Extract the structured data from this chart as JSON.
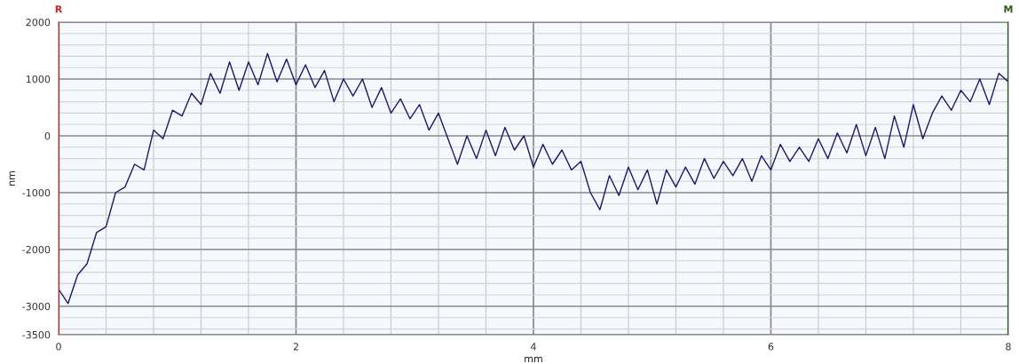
{
  "chart_data": {
    "type": "line",
    "xlabel": "mm",
    "ylabel": "nm",
    "x": [
      0,
      0.08,
      0.16,
      0.24,
      0.32,
      0.4,
      0.48,
      0.56,
      0.64,
      0.72,
      0.8,
      0.88,
      0.96,
      1.04,
      1.12,
      1.2,
      1.28,
      1.36,
      1.44,
      1.52,
      1.6,
      1.68,
      1.76,
      1.84,
      1.92,
      2.0,
      2.08,
      2.16,
      2.24,
      2.32,
      2.4,
      2.48,
      2.56,
      2.64,
      2.72,
      2.8,
      2.88,
      2.96,
      3.04,
      3.12,
      3.2,
      3.28,
      3.36,
      3.44,
      3.52,
      3.6,
      3.68,
      3.76,
      3.84,
      3.92,
      4.0,
      4.08,
      4.16,
      4.24,
      4.32,
      4.4,
      4.48,
      4.56,
      4.64,
      4.72,
      4.8,
      4.88,
      4.96,
      5.04,
      5.12,
      5.2,
      5.28,
      5.36,
      5.44,
      5.52,
      5.6,
      5.68,
      5.76,
      5.84,
      5.92,
      6.0,
      6.08,
      6.16,
      6.24,
      6.32,
      6.4,
      6.48,
      6.56,
      6.64,
      6.72,
      6.8,
      6.88,
      6.96,
      7.04,
      7.12,
      7.2,
      7.28,
      7.36,
      7.44,
      7.52,
      7.6,
      7.68,
      7.76,
      7.84,
      7.92,
      8.0
    ],
    "series": [
      {
        "color": "#1a1a66",
        "values": [
          -2700,
          -2950,
          -2450,
          -2250,
          -1700,
          -1600,
          -1000,
          -900,
          -500,
          -600,
          100,
          -50,
          450,
          350,
          750,
          550,
          1100,
          750,
          1300,
          800,
          1300,
          900,
          1450,
          950,
          1350,
          900,
          1250,
          850,
          1150,
          600,
          1000,
          700,
          1000,
          500,
          850,
          400,
          650,
          300,
          550,
          100,
          400,
          -50,
          -500,
          0,
          -400,
          100,
          -350,
          150,
          -250,
          0,
          -550,
          -150,
          -500,
          -250,
          -600,
          -450,
          -1000,
          -1300,
          -700,
          -1050,
          -550,
          -950,
          -600,
          -1200,
          -600,
          -900,
          -550,
          -850,
          -400,
          -750,
          -450,
          -700,
          -400,
          -800,
          -350,
          -600,
          -150,
          -450,
          -200,
          -450,
          -50,
          -400,
          50,
          -300,
          200,
          -350,
          150,
          -400,
          350,
          -200,
          550,
          -50,
          400,
          700,
          450,
          800,
          600,
          1000,
          550,
          1100,
          950
        ]
      }
    ],
    "xlim": [
      0,
      8
    ],
    "xticks": [
      0,
      {
        "value": 0.4,
        "label": null
      },
      {
        "value": 0.8,
        "label": null
      },
      {
        "value": 1.2,
        "label": null
      },
      {
        "value": 1.6,
        "label": null
      },
      2,
      {
        "value": 2.4,
        "label": null
      },
      {
        "value": 2.8,
        "label": null
      },
      {
        "value": 3.2,
        "label": null
      },
      {
        "value": 3.6,
        "label": null
      },
      4,
      {
        "value": 4.4,
        "label": null
      },
      {
        "value": 4.8,
        "label": null
      },
      {
        "value": 5.2,
        "label": null
      },
      {
        "value": 5.6,
        "label": null
      },
      6,
      {
        "value": 6.4,
        "label": null
      },
      {
        "value": 6.8,
        "label": null
      },
      {
        "value": 7.2,
        "label": null
      },
      {
        "value": 7.6,
        "label": null
      },
      8
    ],
    "ylim": [
      -3500,
      2000
    ],
    "yticks": [
      -3500,
      {
        "value": -3400,
        "label": null
      },
      {
        "value": -3200,
        "label": null
      },
      -3000,
      {
        "value": -2800,
        "label": null
      },
      {
        "value": -2600,
        "label": null
      },
      {
        "value": -2400,
        "label": null
      },
      {
        "value": -2200,
        "label": null
      },
      -2000,
      {
        "value": -1800,
        "label": null
      },
      {
        "value": -1600,
        "label": null
      },
      {
        "value": -1400,
        "label": null
      },
      {
        "value": -1200,
        "label": null
      },
      -1000,
      {
        "value": -800,
        "label": null
      },
      {
        "value": -600,
        "label": null
      },
      {
        "value": -400,
        "label": null
      },
      {
        "value": -200,
        "label": null
      },
      0,
      {
        "value": 200,
        "label": null
      },
      {
        "value": 400,
        "label": null
      },
      {
        "value": 600,
        "label": null
      },
      {
        "value": 800,
        "label": null
      },
      1000,
      {
        "value": 1200,
        "label": null
      },
      {
        "value": 1400,
        "label": null
      },
      {
        "value": 1600,
        "label": null
      },
      {
        "value": 1800,
        "label": null
      },
      2000
    ],
    "grid": true,
    "marker": "none",
    "line_style": "solid",
    "ref_lines": [
      {
        "axis": "x",
        "value": 0,
        "label": "R",
        "color": "#cc2222"
      },
      {
        "axis": "x",
        "value": 8,
        "label": "M",
        "color": "#2e5a1e"
      }
    ]
  }
}
